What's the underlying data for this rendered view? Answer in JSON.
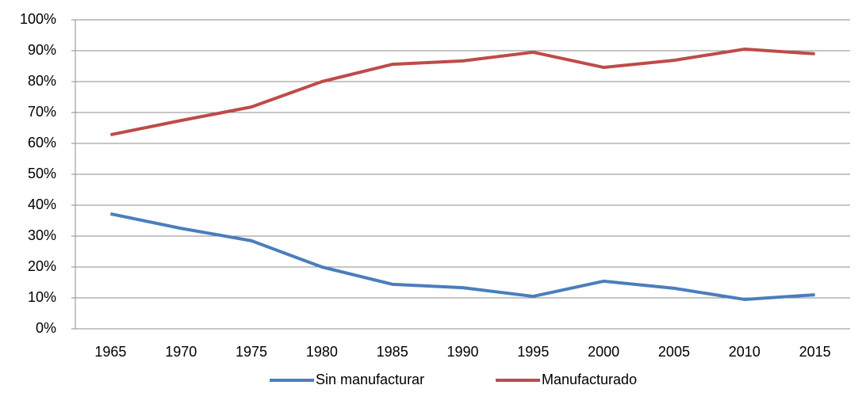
{
  "chart_data": {
    "type": "line",
    "categories": [
      "1965",
      "1970",
      "1975",
      "1980",
      "1985",
      "1990",
      "1995",
      "2000",
      "2005",
      "2010",
      "2015"
    ],
    "series": [
      {
        "name": "Sin manufacturar",
        "color": "#4a7ebb",
        "values": [
          37.2,
          32.5,
          28.5,
          20,
          14.4,
          13.3,
          10.5,
          15.4,
          13.1,
          9.5,
          11
        ]
      },
      {
        "name": "Manufacturado",
        "color": "#be4b48",
        "values": [
          62.8,
          67.4,
          71.8,
          80,
          85.6,
          86.7,
          89.5,
          84.6,
          86.9,
          90.5,
          89
        ]
      }
    ],
    "ylim": [
      0,
      100
    ],
    "yticks": [
      {
        "value": 0,
        "label": "0%"
      },
      {
        "value": 10,
        "label": "10%"
      },
      {
        "value": 20,
        "label": "20%"
      },
      {
        "value": 30,
        "label": "30%"
      },
      {
        "value": 40,
        "label": "40%"
      },
      {
        "value": 50,
        "label": "50%"
      },
      {
        "value": 60,
        "label": "60%"
      },
      {
        "value": 70,
        "label": "70%"
      },
      {
        "value": 80,
        "label": "80%"
      },
      {
        "value": 90,
        "label": "90%"
      },
      {
        "value": 100,
        "label": "100%"
      }
    ],
    "grid": true,
    "legend": "bottom"
  }
}
